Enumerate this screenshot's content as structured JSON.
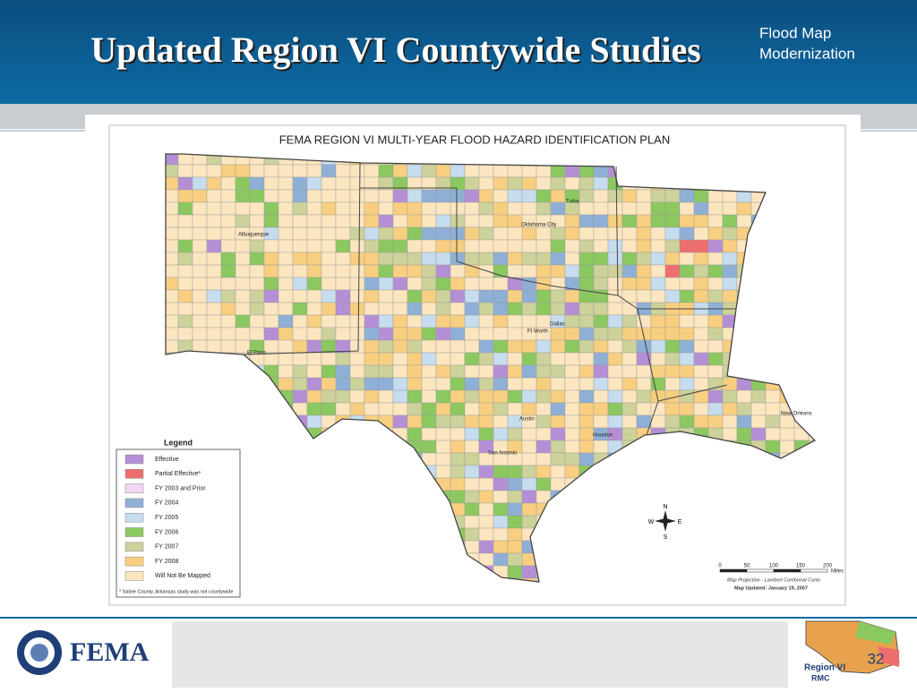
{
  "header": {
    "title": "Updated Region VI Countywide Studies",
    "tagline": [
      "Flood Map",
      "Modernization"
    ]
  },
  "map": {
    "title": "FEMA REGION VI MULTI-YEAR FLOOD HAZARD IDENTIFICATION PLAN",
    "legend": {
      "title": "Legend",
      "items": [
        {
          "label": "Effective",
          "color": "#b58fd6"
        },
        {
          "label": "Partial Effective*",
          "color": "#ee6e6e"
        },
        {
          "label": "FY 2003 and Prior",
          "color": "#f3d6f3"
        },
        {
          "label": "FY 2004",
          "color": "#8fb0d6"
        },
        {
          "label": "FY 2005",
          "color": "#c6dcef"
        },
        {
          "label": "FY 2006",
          "color": "#8cc860"
        },
        {
          "label": "FY 2007",
          "color": "#ccd29a"
        },
        {
          "label": "FY 2008",
          "color": "#f8cf80"
        },
        {
          "label": "Will Not Be Mapped",
          "color": "#fbe6c0"
        }
      ],
      "note": "* Saline County, Arkansas study was not countywide"
    },
    "cities": [
      "Albuquerque",
      "Tulsa",
      "Oklahoma City",
      "Dallas",
      "Ft Worth",
      "El Paso",
      "Austin",
      "San Antonio",
      "Houston",
      "New Orleans"
    ],
    "compass": [
      "N",
      "E",
      "S",
      "W"
    ],
    "scale": {
      "ticks": [
        0,
        50,
        100,
        150,
        200
      ],
      "unit": "Miles"
    },
    "projection": "Map Projection - Lambert Conformal Conic",
    "updated": "Map Updated: January 19, 2007"
  },
  "footer": {
    "logo": "FEMA",
    "page": "32",
    "badge": [
      "Region VI",
      "RMC"
    ]
  }
}
